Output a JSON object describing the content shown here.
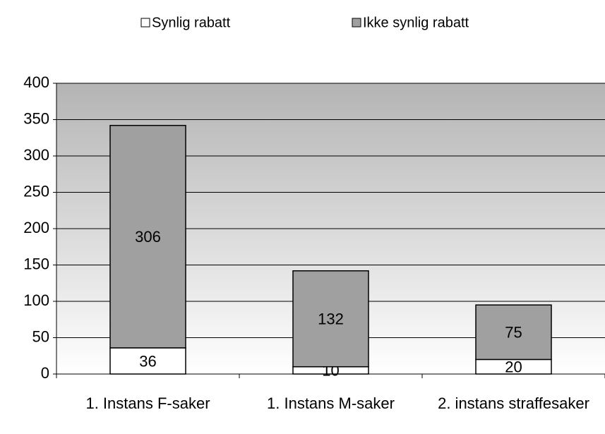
{
  "chart_data": {
    "type": "stacked_bar",
    "categories": [
      "1. Instans F-saker",
      "1. Instans M-saker",
      "2. instans straffesaker"
    ],
    "series": [
      {
        "name": "Synlig rabatt",
        "color": "#ffffff",
        "values": [
          36,
          10,
          20
        ]
      },
      {
        "name": "Ikke synlig rabatt",
        "color": "#a0a0a0",
        "values": [
          306,
          132,
          75
        ]
      }
    ],
    "ylim": [
      0,
      400
    ],
    "yticks": [
      0,
      50,
      100,
      150,
      200,
      250,
      300,
      350,
      400
    ],
    "grid": true
  }
}
